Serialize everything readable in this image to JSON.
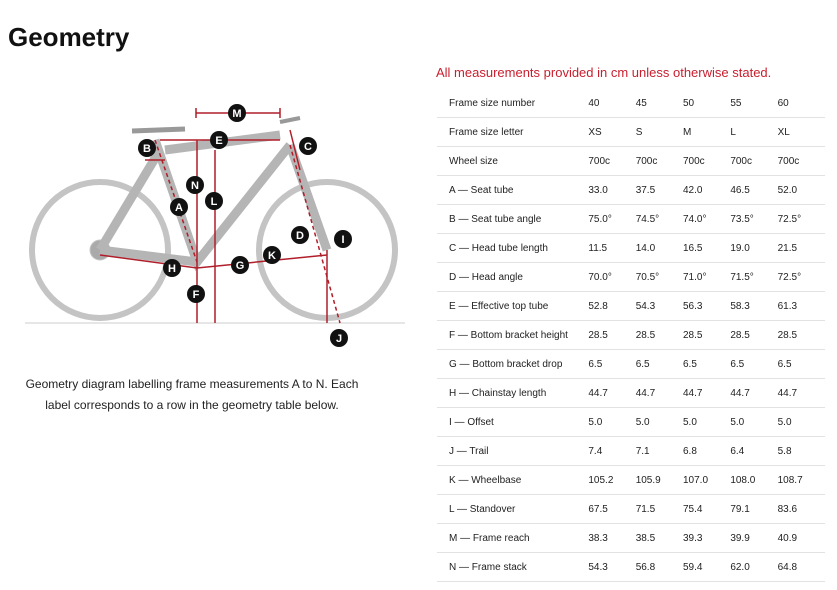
{
  "title": "Geometry",
  "note": "All measurements provided in cm unless otherwise stated.",
  "caption": "Geometry diagram labelling frame measurements A to N. Each label corresponds to a row in the geometry table below.",
  "diagram": {
    "labels": [
      "M",
      "E",
      "C",
      "B",
      "N",
      "L",
      "A",
      "D",
      "I",
      "K",
      "G",
      "H",
      "F",
      "J"
    ]
  },
  "table": {
    "rows": [
      [
        "Frame size number",
        "40",
        "45",
        "50",
        "55",
        "60"
      ],
      [
        "Frame size letter",
        "XS",
        "S",
        "M",
        "L",
        "XL"
      ],
      [
        "Wheel size",
        "700c",
        "700c",
        "700c",
        "700c",
        "700c"
      ],
      [
        "A — Seat tube",
        "33.0",
        "37.5",
        "42.0",
        "46.5",
        "52.0"
      ],
      [
        "B — Seat tube angle",
        "75.0°",
        "74.5°",
        "74.0°",
        "73.5°",
        "72.5°"
      ],
      [
        "C — Head tube length",
        "11.5",
        "14.0",
        "16.5",
        "19.0",
        "21.5"
      ],
      [
        "D — Head angle",
        "70.0°",
        "70.5°",
        "71.0°",
        "71.5°",
        "72.5°"
      ],
      [
        "E — Effective top tube",
        "52.8",
        "54.3",
        "56.3",
        "58.3",
        "61.3"
      ],
      [
        "F — Bottom bracket height",
        "28.5",
        "28.5",
        "28.5",
        "28.5",
        "28.5"
      ],
      [
        "G — Bottom bracket drop",
        "6.5",
        "6.5",
        "6.5",
        "6.5",
        "6.5"
      ],
      [
        "H — Chainstay length",
        "44.7",
        "44.7",
        "44.7",
        "44.7",
        "44.7"
      ],
      [
        "I — Offset",
        "5.0",
        "5.0",
        "5.0",
        "5.0",
        "5.0"
      ],
      [
        "J — Trail",
        "7.4",
        "7.1",
        "6.8",
        "6.4",
        "5.8"
      ],
      [
        "K — Wheelbase",
        "105.2",
        "105.9",
        "107.0",
        "108.0",
        "108.7"
      ],
      [
        "L — Standover",
        "67.5",
        "71.5",
        "75.4",
        "79.1",
        "83.6"
      ],
      [
        "M — Frame reach",
        "38.3",
        "38.5",
        "39.3",
        "39.9",
        "40.9"
      ],
      [
        "N — Frame stack",
        "54.3",
        "56.8",
        "59.4",
        "62.0",
        "64.8"
      ]
    ]
  }
}
